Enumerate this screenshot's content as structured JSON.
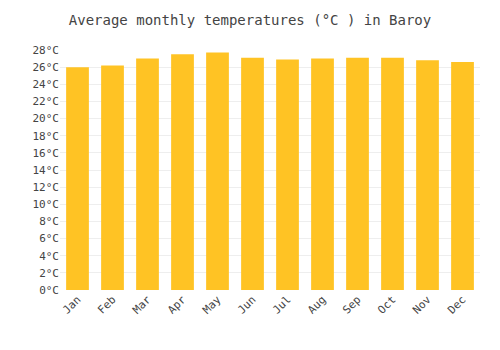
{
  "chart_data": {
    "type": "bar",
    "title": "Average monthly temperatures (°C ) in Baroy",
    "categories": [
      "Jan",
      "Feb",
      "Mar",
      "Apr",
      "May",
      "Jun",
      "Jul",
      "Aug",
      "Sep",
      "Oct",
      "Nov",
      "Dec"
    ],
    "values": [
      26.0,
      26.2,
      27.0,
      27.5,
      27.7,
      27.1,
      26.9,
      27.0,
      27.1,
      27.1,
      26.8,
      26.6
    ],
    "color": "#FFC324",
    "ylim": [
      0,
      28
    ],
    "yticks": [
      {
        "value": 0,
        "label": "0°C"
      },
      {
        "value": 2,
        "label": "2°C"
      },
      {
        "value": 4,
        "label": "4°C"
      },
      {
        "value": 6,
        "label": "6°C"
      },
      {
        "value": 8,
        "label": "8°C"
      },
      {
        "value": 10,
        "label": "10°C"
      },
      {
        "value": 12,
        "label": "12°C"
      },
      {
        "value": 14,
        "label": "14°C"
      },
      {
        "value": 16,
        "label": "16°C"
      },
      {
        "value": 18,
        "label": "18°C"
      },
      {
        "value": 20,
        "label": "20°C"
      },
      {
        "value": 22,
        "label": "22°C"
      },
      {
        "value": 24,
        "label": "24°C"
      },
      {
        "value": 26,
        "label": "26°C"
      },
      {
        "value": 28,
        "label": "28°C"
      }
    ],
    "grid": true
  }
}
